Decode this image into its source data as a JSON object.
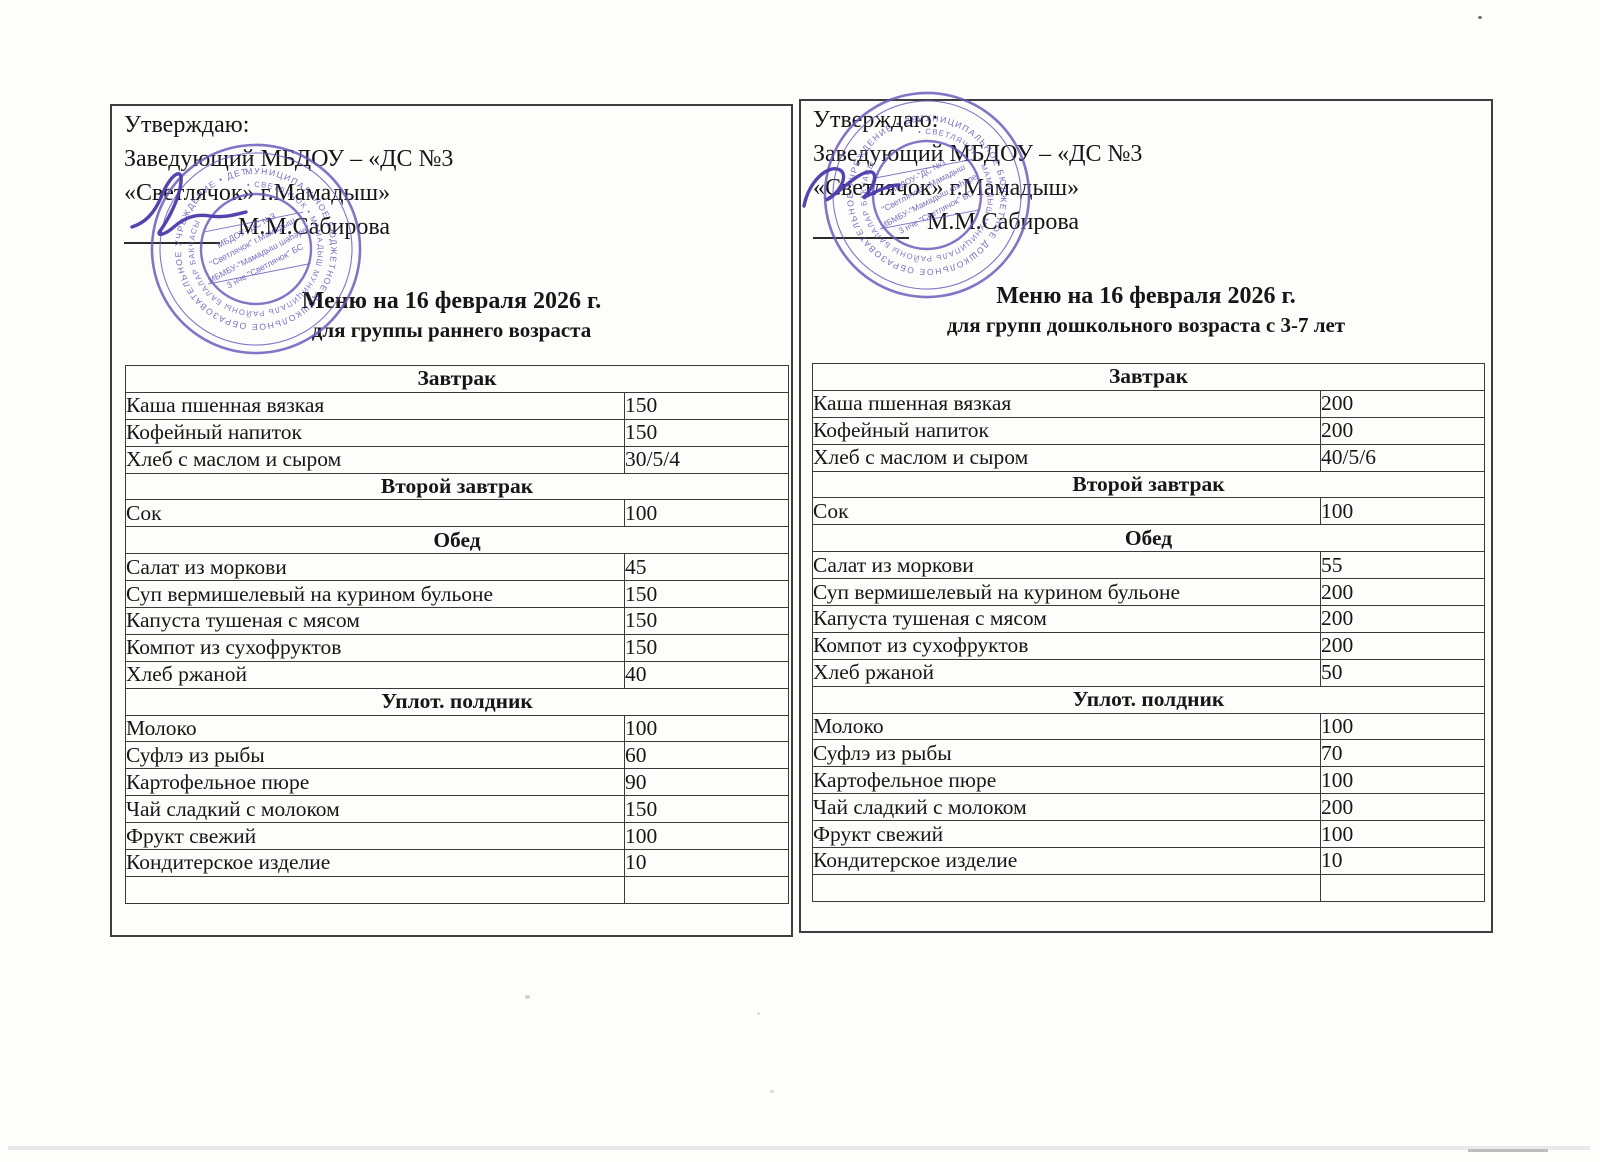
{
  "document": {
    "left": {
      "approval": [
        "Утверждаю:",
        "Заведующий МБДОУ – «ДС №3",
        "«Светлячок» г.Мамадыш»"
      ],
      "signer": "М.М.Сабирова",
      "title": "Меню на 16 февраля 2026 г.",
      "subtitle": "для группы раннего возраста",
      "rows": [
        {
          "type": "section",
          "label": "Завтрак"
        },
        {
          "type": "item",
          "dish": "Каша пшенная вязкая",
          "amount": "150"
        },
        {
          "type": "item",
          "dish": "Кофейный напиток",
          "amount": "150"
        },
        {
          "type": "item",
          "dish": "Хлеб с маслом и сыром",
          "amount": "30/5/4"
        },
        {
          "type": "section",
          "label": "Второй завтрак"
        },
        {
          "type": "item",
          "dish": "Сок",
          "amount": "100"
        },
        {
          "type": "section",
          "label": "Обед"
        },
        {
          "type": "item",
          "dish": "Салат из моркови",
          "amount": "45"
        },
        {
          "type": "item",
          "dish": "Суп вермишелевый на курином бульоне",
          "amount": "150"
        },
        {
          "type": "item",
          "dish": "Капуста тушеная с мясом",
          "amount": "150"
        },
        {
          "type": "item",
          "dish": "Компот из сухофруктов",
          "amount": "150"
        },
        {
          "type": "item",
          "dish": "Хлеб ржаной",
          "amount": "40"
        },
        {
          "type": "section",
          "label": "Уплот. полдник"
        },
        {
          "type": "item",
          "dish": "Молоко",
          "amount": "100"
        },
        {
          "type": "item",
          "dish": "Суфлэ из рыбы",
          "amount": "60"
        },
        {
          "type": "item",
          "dish": "Картофельное пюре",
          "amount": "90"
        },
        {
          "type": "item",
          "dish": "Чай сладкий с молоком",
          "amount": "150"
        },
        {
          "type": "item",
          "dish": "Фрукт свежий",
          "amount": "100"
        },
        {
          "type": "item",
          "dish": "Кондитерское изделие",
          "amount": "10"
        },
        {
          "type": "item",
          "dish": "",
          "amount": ""
        }
      ]
    },
    "right": {
      "approval": [
        "Утверждаю:",
        "Заведующий МБДОУ – «ДС №3",
        "«Светлячок» г.Мамадыш»"
      ],
      "signer": "М.М.Сабирова",
      "title": "Меню на 16 февраля 2026 г.",
      "subtitle": "для групп дошкольного возраста с 3-7 лет",
      "rows": [
        {
          "type": "section",
          "label": "Завтрак"
        },
        {
          "type": "item",
          "dish": "Каша пшенная вязкая",
          "amount": "200"
        },
        {
          "type": "item",
          "dish": "Кофейный напиток",
          "amount": "200"
        },
        {
          "type": "item",
          "dish": "Хлеб с маслом и сыром",
          "amount": "40/5/6"
        },
        {
          "type": "section",
          "label": "Второй завтрак"
        },
        {
          "type": "item",
          "dish": "Сок",
          "amount": "100"
        },
        {
          "type": "section",
          "label": "Обед"
        },
        {
          "type": "item",
          "dish": "Салат из моркови",
          "amount": "55"
        },
        {
          "type": "item",
          "dish": "Суп вермишелевый на курином бульоне",
          "amount": "200"
        },
        {
          "type": "item",
          "dish": "Капуста тушеная с мясом",
          "amount": "200"
        },
        {
          "type": "item",
          "dish": "Компот из сухофруктов",
          "amount": "200"
        },
        {
          "type": "item",
          "dish": "Хлеб ржаной",
          "amount": "50"
        },
        {
          "type": "section",
          "label": "Уплот. полдник"
        },
        {
          "type": "item",
          "dish": "Молоко",
          "amount": "100"
        },
        {
          "type": "item",
          "dish": "Суфлэ из рыбы",
          "amount": "70"
        },
        {
          "type": "item",
          "dish": "Картофельное пюре",
          "amount": "100"
        },
        {
          "type": "item",
          "dish": "Чай сладкий с молоком",
          "amount": "200"
        },
        {
          "type": "item",
          "dish": "Фрукт свежий",
          "amount": "100"
        },
        {
          "type": "item",
          "dish": "Кондитерское изделие",
          "amount": "10"
        },
        {
          "type": "item",
          "dish": "",
          "amount": ""
        }
      ]
    },
    "stamp": {
      "color": "#6b57ba",
      "ring_outer": "МУНИЦИПАЛЬНОЕ БЮДЖЕТНОЕ ДОШКОЛЬНОЕ ОБРАЗОВАТЕЛЬНОЕ УЧРЕЖДЕНИЕ • ДЕТСКИЙ САД №3 •",
      "ring_mid": "• СВЕТЛЯЧОК • МАМАДЫШ МУНИЦИПАЛЬ РАЙОНЫ БАЛАЛАР БАКЧАСЫ •",
      "center_lines": [
        "МБДОУ-\"ДС №3",
        "\"Светлячок\" г.Мамадыш",
        "МБМБУ-\"Мамадыш шәһәре\"",
        "3 нче \"Светлячок\" БС"
      ]
    }
  }
}
